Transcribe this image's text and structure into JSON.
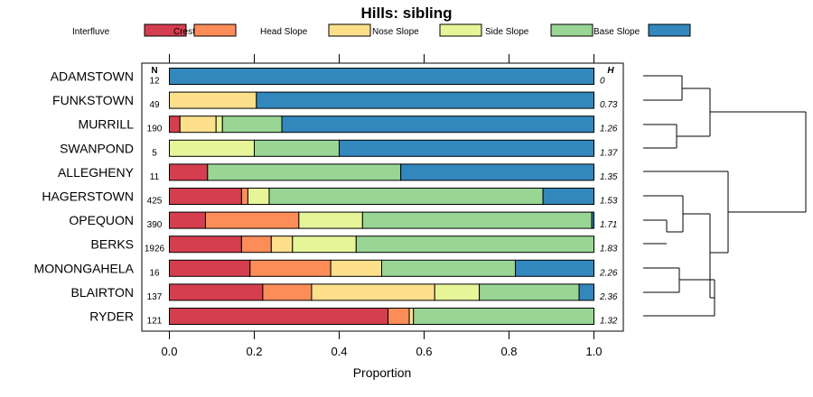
{
  "chart_data": {
    "type": "bar",
    "stacked": true,
    "orientation": "horizontal",
    "title": "Hills: sibling",
    "xlabel": "Proportion",
    "ylabel": "",
    "xlim": [
      0,
      1
    ],
    "xticks": [
      "0.0",
      "0.2",
      "0.4",
      "0.6",
      "0.8",
      "1.0"
    ],
    "n_header": "N",
    "h_header": "H",
    "legend_position": "top",
    "categories": [
      "ADAMSTOWN",
      "FUNKSTOWN",
      "MURRILL",
      "SWANPOND",
      "ALLEGHENY",
      "HAGERSTOWN",
      "OPEQUON",
      "BERKS",
      "MONONGAHELA",
      "BLAIRTON",
      "RYDER"
    ],
    "n": [
      "12",
      "49",
      "190",
      "5",
      "11",
      "425",
      "390",
      "1926",
      "16",
      "137",
      "121"
    ],
    "h": [
      "0",
      "0.73",
      "1.26",
      "1.37",
      "1.35",
      "1.53",
      "1.71",
      "1.83",
      "2.26",
      "2.36",
      "1.32"
    ],
    "series": [
      {
        "name": "Interfluve",
        "color": "#D53E4F",
        "values": [
          0,
          0,
          0.025,
          0,
          0.09,
          0.17,
          0.085,
          0.17,
          0.19,
          0.22,
          0.515
        ]
      },
      {
        "name": "Crest",
        "color": "#FC8D59",
        "values": [
          0,
          0,
          0,
          0,
          0,
          0.015,
          0.22,
          0.07,
          0.19,
          0.115,
          0.05
        ]
      },
      {
        "name": "Head Slope",
        "color": "#FEE08B",
        "values": [
          0,
          0.205,
          0.085,
          0,
          0,
          0,
          0,
          0.05,
          0.12,
          0.29,
          0.01
        ]
      },
      {
        "name": "Nose Slope",
        "color": "#E6F598",
        "values": [
          0,
          0,
          0.015,
          0.2,
          0,
          0.05,
          0.15,
          0.15,
          0,
          0.105,
          0
        ]
      },
      {
        "name": "Side Slope",
        "color": "#99D594",
        "values": [
          0,
          0,
          0.14,
          0.2,
          0.455,
          0.645,
          0.54,
          0.56,
          0.315,
          0.235,
          0.425
        ]
      },
      {
        "name": "Base Slope",
        "color": "#3288BD",
        "values": [
          1,
          0.795,
          0.735,
          0.6,
          0.455,
          0.12,
          0.005,
          0,
          0.185,
          0.035,
          0
        ]
      }
    ],
    "dendrogram_order": [
      "ADAMSTOWN",
      "FUNKSTOWN",
      "MURRILL",
      "SWANPOND",
      "ALLEGHENY",
      "HAGERSTOWN",
      "OPEQUON",
      "BERKS",
      "MONONGAHELA",
      "BLAIRTON",
      "RYDER"
    ]
  }
}
